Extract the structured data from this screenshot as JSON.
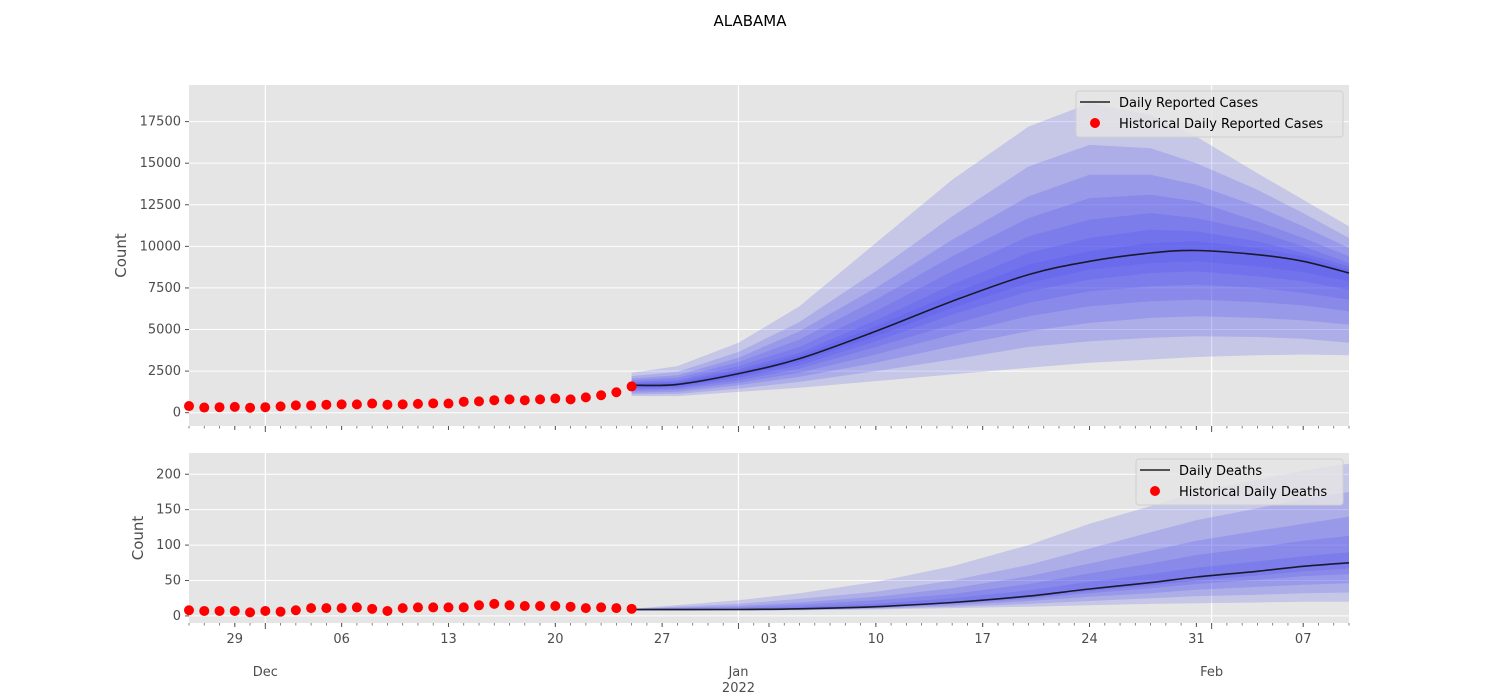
{
  "title": "ALABAMA",
  "chart_data": [
    {
      "type": "line",
      "panel": "cases",
      "ylabel": "Count",
      "ylim": [
        -800,
        19700
      ],
      "yticks": [
        0,
        2500,
        5000,
        7500,
        10000,
        12500,
        15000,
        17500
      ],
      "grid": true,
      "legend_position": "top-right",
      "legend": [
        {
          "label": "Daily Reported Cases",
          "marker": "line",
          "color": "#222222"
        },
        {
          "label": "Historical Daily Reported Cases",
          "marker": "dot",
          "color": "#ff0000"
        }
      ],
      "historical": {
        "name": "Historical Daily Reported Cases",
        "color": "#ff0000",
        "dates": [
          "2021-11-26",
          "2021-11-27",
          "2021-11-28",
          "2021-11-29",
          "2021-11-30",
          "2021-12-01",
          "2021-12-02",
          "2021-12-03",
          "2021-12-04",
          "2021-12-05",
          "2021-12-06",
          "2021-12-07",
          "2021-12-08",
          "2021-12-09",
          "2021-12-10",
          "2021-12-11",
          "2021-12-12",
          "2021-12-13",
          "2021-12-14",
          "2021-12-15",
          "2021-12-16",
          "2021-12-17",
          "2021-12-18",
          "2021-12-19",
          "2021-12-20",
          "2021-12-21",
          "2021-12-22",
          "2021-12-23",
          "2021-12-24",
          "2021-12-25"
        ],
        "values": [
          400,
          310,
          330,
          350,
          300,
          330,
          380,
          440,
          430,
          480,
          500,
          500,
          550,
          480,
          500,
          530,
          560,
          550,
          660,
          680,
          750,
          800,
          750,
          800,
          850,
          800,
          920,
          1050,
          1230,
          1580
        ]
      },
      "forecast": {
        "name": "Daily Reported Cases",
        "color": "#1a1a2e",
        "band_color": "#4a4cf0",
        "dates": [
          "2021-12-25",
          "2021-12-28",
          "2022-01-01",
          "2022-01-05",
          "2022-01-10",
          "2022-01-15",
          "2022-01-20",
          "2022-01-24",
          "2022-01-28",
          "2022-01-31",
          "2022-02-04",
          "2022-02-07",
          "2022-02-10"
        ],
        "median": [
          1650,
          1700,
          2350,
          3250,
          4900,
          6700,
          8300,
          9100,
          9600,
          9750,
          9500,
          9100,
          8400
        ],
        "quantiles": [
          {
            "lower": [
              1000,
              1000,
              1250,
              1500,
              1900,
              2300,
              2700,
              3000,
              3200,
              3350,
              3450,
              3500,
              3450
            ],
            "upper": [
              2400,
              2800,
              4200,
              6400,
              10200,
              14000,
              17200,
              18600,
              17900,
              16600,
              14400,
              12800,
              11200
            ]
          },
          {
            "lower": [
              1100,
              1130,
              1450,
              1850,
              2500,
              3200,
              3950,
              4300,
              4500,
              4600,
              4550,
              4450,
              4200
            ],
            "upper": [
              2200,
              2450,
              3650,
              5450,
              8500,
              11800,
              14800,
              16100,
              15900,
              15000,
              13400,
              12000,
              10500
            ]
          },
          {
            "lower": [
              1200,
              1250,
              1650,
              2150,
              3000,
              4000,
              4900,
              5400,
              5700,
              5800,
              5700,
              5550,
              5300
            ],
            "upper": [
              2050,
              2250,
              3300,
              4900,
              7500,
              10400,
              13000,
              14300,
              14300,
              13700,
              12400,
              11200,
              9900
            ]
          },
          {
            "lower": [
              1300,
              1370,
              1800,
              2400,
              3500,
              4700,
              5800,
              6400,
              6700,
              6800,
              6650,
              6450,
              6100
            ],
            "upper": [
              1950,
              2100,
              3050,
              4400,
              6800,
              9400,
              11700,
              12900,
              13100,
              12700,
              11500,
              10500,
              9400
            ]
          },
          {
            "lower": [
              1400,
              1460,
              1950,
              2650,
              3950,
              5300,
              6600,
              7300,
              7600,
              7700,
              7500,
              7200,
              6800
            ],
            "upper": [
              1850,
              1950,
              2800,
              3950,
              6100,
              8500,
              10600,
              11600,
              12000,
              11700,
              10900,
              10000,
              9000
            ]
          },
          {
            "lower": [
              1480,
              1550,
              2100,
              2850,
              4300,
              5900,
              7300,
              8000,
              8400,
              8500,
              8200,
              7900,
              7400
            ],
            "upper": [
              1780,
              1850,
              2600,
              3600,
              5550,
              7700,
              9600,
              10500,
              11000,
              10900,
              10300,
              9600,
              8800
            ]
          },
          {
            "lower": [
              1550,
              1620,
              2200,
              3050,
              4600,
              6300,
              7800,
              8600,
              9000,
              9100,
              8800,
              8450,
              7900
            ],
            "upper": [
              1720,
              1780,
              2480,
              3420,
              5200,
              7150,
              8900,
              9700,
              10200,
              10300,
              9900,
              9400,
              8600
            ]
          }
        ]
      }
    },
    {
      "type": "line",
      "panel": "deaths",
      "ylabel": "Count",
      "ylim": [
        -10,
        230
      ],
      "yticks": [
        0,
        50,
        100,
        150,
        200
      ],
      "grid": true,
      "legend_position": "top-right",
      "legend": [
        {
          "label": "Daily Deaths",
          "marker": "line",
          "color": "#222222"
        },
        {
          "label": "Historical Daily Deaths",
          "marker": "dot",
          "color": "#ff0000"
        }
      ],
      "historical": {
        "name": "Historical Daily Deaths",
        "color": "#ff0000",
        "dates": [
          "2021-11-26",
          "2021-11-27",
          "2021-11-28",
          "2021-11-29",
          "2021-11-30",
          "2021-12-01",
          "2021-12-02",
          "2021-12-03",
          "2021-12-04",
          "2021-12-05",
          "2021-12-06",
          "2021-12-07",
          "2021-12-08",
          "2021-12-09",
          "2021-12-10",
          "2021-12-11",
          "2021-12-12",
          "2021-12-13",
          "2021-12-14",
          "2021-12-15",
          "2021-12-16",
          "2021-12-17",
          "2021-12-18",
          "2021-12-19",
          "2021-12-20",
          "2021-12-21",
          "2021-12-22",
          "2021-12-23",
          "2021-12-24",
          "2021-12-25"
        ],
        "values": [
          8,
          7,
          7,
          7,
          5,
          7,
          6,
          8,
          11,
          11,
          11,
          12,
          10,
          7,
          11,
          12,
          12,
          12,
          12,
          15,
          17,
          15,
          14,
          14,
          14,
          13,
          11,
          12,
          11,
          10
        ]
      },
      "forecast": {
        "name": "Daily Deaths",
        "color": "#1a1a2e",
        "band_color": "#4a4cf0",
        "dates": [
          "2021-12-25",
          "2022-01-01",
          "2022-01-05",
          "2022-01-10",
          "2022-01-15",
          "2022-01-20",
          "2022-01-24",
          "2022-01-28",
          "2022-01-31",
          "2022-02-04",
          "2022-02-07",
          "2022-02-10"
        ],
        "median": [
          9,
          9,
          10,
          13,
          19,
          28,
          38,
          47,
          55,
          63,
          70,
          75
        ],
        "quantiles": [
          {
            "lower": [
              8,
              8,
              8,
              9,
              11,
              13,
              15,
              17,
              18,
              19,
              20,
              20
            ],
            "upper": [
              10,
              22,
              32,
              48,
              70,
              100,
              130,
              155,
              175,
              192,
              205,
              215
            ]
          },
          {
            "lower": [
              8,
              8,
              8,
              10,
              13,
              17,
              21,
              25,
              28,
              30,
              32,
              33
            ],
            "upper": [
              10,
              17,
              24,
              34,
              50,
              72,
              95,
              118,
              135,
              152,
              165,
              175
            ]
          },
          {
            "lower": [
              8,
              8,
              9,
              11,
              15,
              21,
              27,
              32,
              37,
              41,
              44,
              46
            ],
            "upper": [
              10,
              14,
              19,
              27,
              39,
              56,
              74,
              92,
              106,
              120,
              130,
              140
            ]
          },
          {
            "lower": [
              9,
              9,
              9,
              12,
              17,
              24,
              32,
              39,
              45,
              51,
              56,
              59
            ],
            "upper": [
              10,
              12,
              16,
              22,
              31,
              45,
              60,
              74,
              86,
              97,
              106,
              113
            ]
          },
          {
            "lower": [
              9,
              9,
              10,
              12,
              18,
              26,
              35,
              43,
              50,
              57,
              63,
              67
            ],
            "upper": [
              9,
              10,
              13,
              17,
              25,
              36,
              48,
              59,
              68,
              77,
              84,
              90
            ]
          }
        ]
      }
    }
  ],
  "xaxis": {
    "minor_ticks": [
      {
        "date": "2021-11-29",
        "label": "29"
      },
      {
        "date": "2021-12-06",
        "label": "06"
      },
      {
        "date": "2021-12-13",
        "label": "13"
      },
      {
        "date": "2021-12-20",
        "label": "20"
      },
      {
        "date": "2021-12-27",
        "label": "27"
      },
      {
        "date": "2022-01-03",
        "label": "03"
      },
      {
        "date": "2022-01-10",
        "label": "10"
      },
      {
        "date": "2022-01-17",
        "label": "17"
      },
      {
        "date": "2022-01-24",
        "label": "24"
      },
      {
        "date": "2022-01-31",
        "label": "31"
      },
      {
        "date": "2022-02-07",
        "label": "07"
      }
    ],
    "major_ticks": [
      {
        "date": "2021-12-01",
        "label": "Dec"
      },
      {
        "date": "2022-01-01",
        "label": "Jan",
        "sublabel": "2022"
      },
      {
        "date": "2022-02-01",
        "label": "Feb"
      }
    ],
    "range": [
      "2021-11-26",
      "2022-02-10"
    ]
  }
}
